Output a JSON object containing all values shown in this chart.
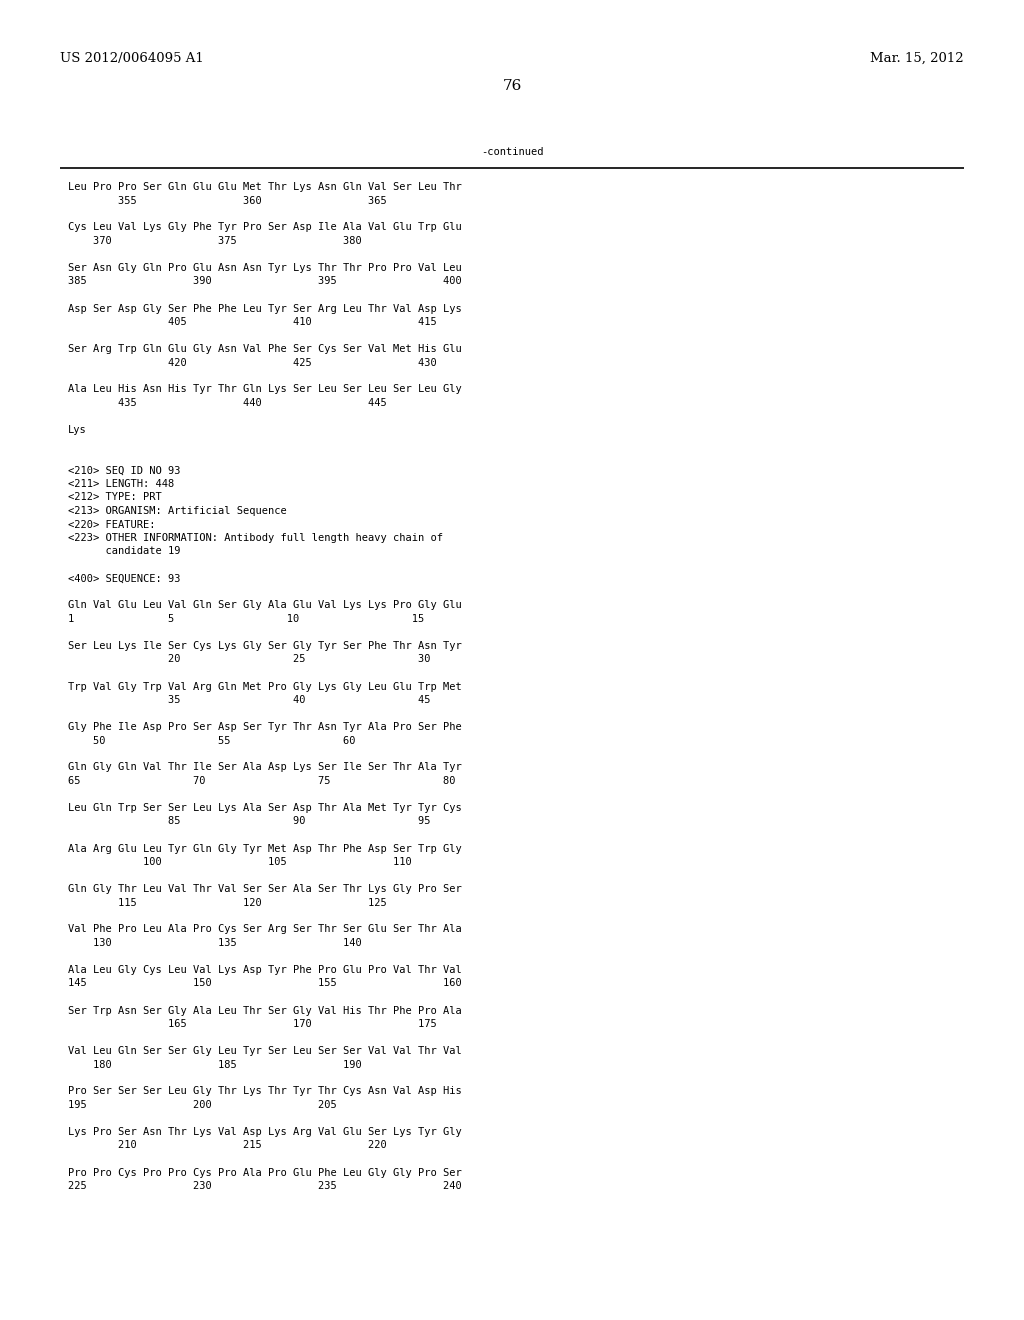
{
  "header_left": "US 2012/0064095 A1",
  "header_right": "Mar. 15, 2012",
  "page_number": "76",
  "continued_label": "-continued",
  "background_color": "#ffffff",
  "text_color": "#000000",
  "font_size": 7.5,
  "header_font_size": 9.5,
  "page_num_font_size": 11,
  "content_lines": [
    "Leu Pro Pro Ser Gln Glu Glu Met Thr Lys Asn Gln Val Ser Leu Thr",
    "        355                 360                 365",
    "",
    "Cys Leu Val Lys Gly Phe Tyr Pro Ser Asp Ile Ala Val Glu Trp Glu",
    "    370                 375                 380",
    "",
    "Ser Asn Gly Gln Pro Glu Asn Asn Tyr Lys Thr Thr Pro Pro Val Leu",
    "385                 390                 395                 400",
    "",
    "Asp Ser Asp Gly Ser Phe Phe Leu Tyr Ser Arg Leu Thr Val Asp Lys",
    "                405                 410                 415",
    "",
    "Ser Arg Trp Gln Glu Gly Asn Val Phe Ser Cys Ser Val Met His Glu",
    "                420                 425                 430",
    "",
    "Ala Leu His Asn His Tyr Thr Gln Lys Ser Leu Ser Leu Ser Leu Gly",
    "        435                 440                 445",
    "",
    "Lys",
    "",
    "",
    "<210> SEQ ID NO 93",
    "<211> LENGTH: 448",
    "<212> TYPE: PRT",
    "<213> ORGANISM: Artificial Sequence",
    "<220> FEATURE:",
    "<223> OTHER INFORMATION: Antibody full length heavy chain of",
    "      candidate 19",
    "",
    "<400> SEQUENCE: 93",
    "",
    "Gln Val Glu Leu Val Gln Ser Gly Ala Glu Val Lys Lys Pro Gly Glu",
    "1               5                  10                  15",
    "",
    "Ser Leu Lys Ile Ser Cys Lys Gly Ser Gly Tyr Ser Phe Thr Asn Tyr",
    "                20                  25                  30",
    "",
    "Trp Val Gly Trp Val Arg Gln Met Pro Gly Lys Gly Leu Glu Trp Met",
    "                35                  40                  45",
    "",
    "Gly Phe Ile Asp Pro Ser Asp Ser Tyr Thr Asn Tyr Ala Pro Ser Phe",
    "    50                  55                  60",
    "",
    "Gln Gly Gln Val Thr Ile Ser Ala Asp Lys Ser Ile Ser Thr Ala Tyr",
    "65                  70                  75                  80",
    "",
    "Leu Gln Trp Ser Ser Leu Lys Ala Ser Asp Thr Ala Met Tyr Tyr Cys",
    "                85                  90                  95",
    "",
    "Ala Arg Glu Leu Tyr Gln Gly Tyr Met Asp Thr Phe Asp Ser Trp Gly",
    "            100                 105                 110",
    "",
    "Gln Gly Thr Leu Val Thr Val Ser Ser Ala Ser Thr Lys Gly Pro Ser",
    "        115                 120                 125",
    "",
    "Val Phe Pro Leu Ala Pro Cys Ser Arg Ser Thr Ser Glu Ser Thr Ala",
    "    130                 135                 140",
    "",
    "Ala Leu Gly Cys Leu Val Lys Asp Tyr Phe Pro Glu Pro Val Thr Val",
    "145                 150                 155                 160",
    "",
    "Ser Trp Asn Ser Gly Ala Leu Thr Ser Gly Val His Thr Phe Pro Ala",
    "                165                 170                 175",
    "",
    "Val Leu Gln Ser Ser Gly Leu Tyr Ser Leu Ser Ser Val Val Thr Val",
    "    180                 185                 190",
    "",
    "Pro Ser Ser Ser Leu Gly Thr Lys Thr Tyr Thr Cys Asn Val Asp His",
    "195                 200                 205",
    "",
    "Lys Pro Ser Asn Thr Lys Val Asp Lys Arg Val Glu Ser Lys Tyr Gly",
    "        210                 215                 220",
    "",
    "Pro Pro Cys Pro Pro Cys Pro Ala Pro Glu Phe Leu Gly Gly Pro Ser",
    "225                 230                 235                 240"
  ]
}
